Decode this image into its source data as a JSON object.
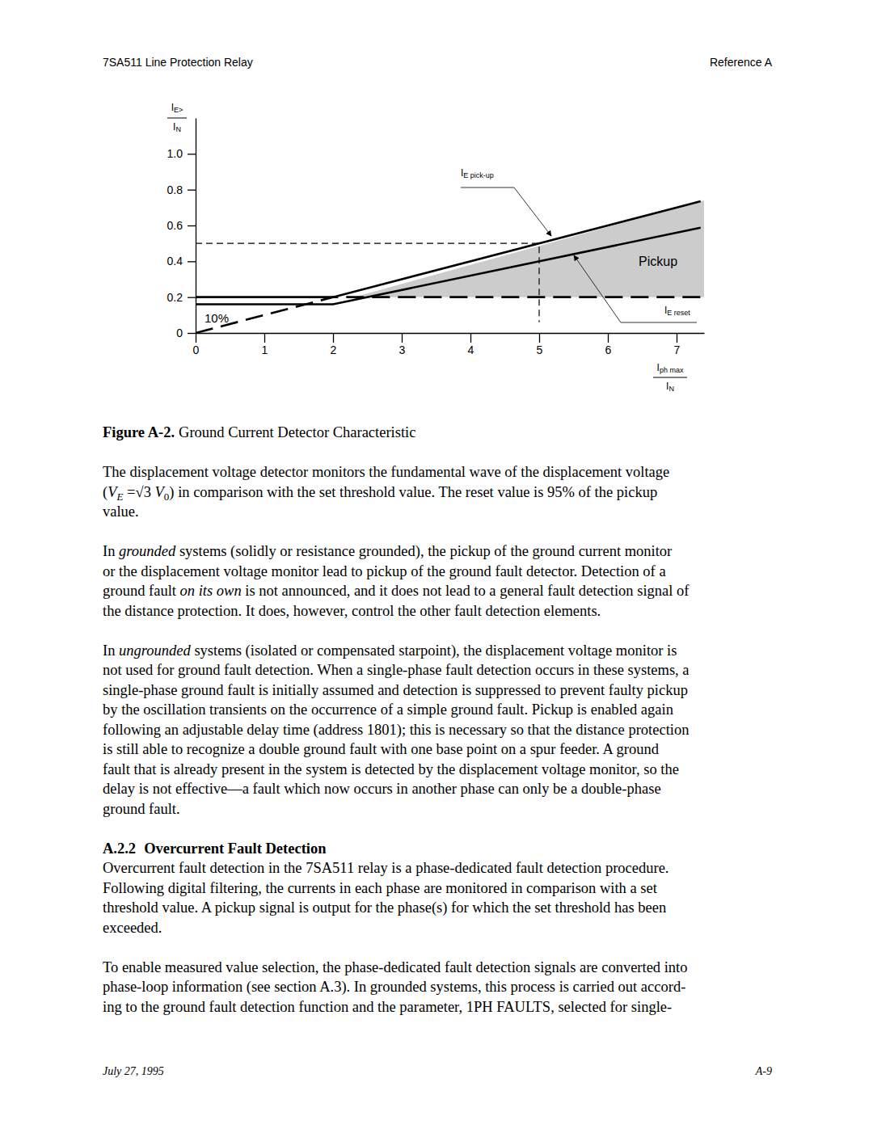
{
  "header": {
    "left": "7SA511 Line Protection Relay",
    "right": "Reference A"
  },
  "chart_data": {
    "type": "line",
    "xlim": [
      0,
      7.4
    ],
    "ylim": [
      0,
      1.2
    ],
    "xticks": [
      0,
      1,
      2,
      3,
      4,
      5,
      6,
      7
    ],
    "yticks": [
      0,
      0.2,
      0.4,
      0.6,
      0.8,
      {
        "value": 1,
        "label": "1.0"
      }
    ],
    "ylabel": {
      "numerator": [
        {
          "text": "I"
        },
        {
          "text": "E>",
          "style": "sub"
        }
      ],
      "denominator": [
        {
          "text": "I"
        },
        {
          "text": "N",
          "style": "sub"
        }
      ]
    },
    "xlabel": {
      "numerator": [
        {
          "text": "I"
        },
        {
          "text": "ph max",
          "style": "sub"
        }
      ],
      "denominator": [
        {
          "text": "I"
        },
        {
          "text": "N",
          "style": "sub"
        }
      ]
    },
    "series": [
      {
        "type": "line",
        "color": "#000000",
        "line_style": "solid",
        "x": [
          0,
          2,
          7.35
        ],
        "values": [
          0.2,
          0.2,
          0.735
        ]
      },
      {
        "type": "line",
        "color": "#000000",
        "line_style": "solid",
        "x": [
          0,
          2,
          7.35
        ],
        "values": [
          0.16,
          0.16,
          0.588
        ]
      },
      {
        "type": "line",
        "color": "#000000",
        "line_style": "dashed",
        "x": [
          0,
          2,
          7.4
        ],
        "values": [
          0,
          0.2,
          0.2
        ]
      },
      {
        "type": "line",
        "color": "#000000",
        "line_style": "dotted",
        "x": [
          0,
          5,
          5
        ],
        "values": [
          0.5,
          0.5,
          0.06
        ]
      },
      {
        "type": "area",
        "color": "#cccccc",
        "x": [
          2.3,
          7.4
        ],
        "values": [
          0.2,
          0.74
        ],
        "lower": [
          0.2,
          0.2
        ]
      }
    ],
    "annotations": [
      [
        {
          "text": "I"
        },
        {
          "text": "E pick-up",
          "style": "sub"
        }
      ],
      [
        {
          "text": "I"
        },
        {
          "text": "E reset",
          "style": "sub"
        }
      ],
      [
        {
          "text": "Pickup"
        }
      ],
      [
        {
          "text": "10%"
        }
      ]
    ]
  },
  "caption": {
    "label": "Figure A-2.",
    "text": "Ground Current Detector Characteristic"
  },
  "body": [
    {
      "type": "paragraph",
      "lines": [
        [
          {
            "text": "The displacement voltage detector monitors the fundamental wave of the displacement voltage"
          }
        ],
        [
          {
            "text": "("
          },
          {
            "text": "V",
            "style": "italic"
          },
          {
            "text": "E",
            "style": "italic-sub"
          },
          {
            "text": " =√3 "
          },
          {
            "text": "V",
            "style": "italic"
          },
          {
            "text": "0",
            "style": "sub"
          },
          {
            "text": ") in comparison with the set threshold value. The reset value is 95% of the pickup"
          }
        ],
        [
          {
            "text": "value."
          }
        ]
      ]
    },
    {
      "type": "paragraph",
      "lines": [
        [
          {
            "text": "In "
          },
          {
            "text": "grounded",
            "style": "italic"
          },
          {
            "text": " systems (solidly or resistance grounded), the pickup of the ground current monitor"
          }
        ],
        [
          {
            "text": "or the displacement voltage monitor lead to pickup of the ground fault detector. Detection of a"
          }
        ],
        [
          {
            "text": "ground fault "
          },
          {
            "text": "on its own",
            "style": "italic"
          },
          {
            "text": " is not announced, and it does not lead to a general fault detection signal of"
          }
        ],
        [
          {
            "text": "the distance protection. It does, however, control the other fault detection elements."
          }
        ]
      ]
    },
    {
      "type": "paragraph",
      "lines": [
        [
          {
            "text": "In "
          },
          {
            "text": "ungrounded",
            "style": "italic"
          },
          {
            "text": " systems (isolated or compensated starpoint), the displacement voltage monitor is"
          }
        ],
        [
          {
            "text": "not used for ground fault detection. When a single-phase fault detection occurs in these systems, a"
          }
        ],
        [
          {
            "text": "single-phase ground fault is initially assumed and detection is suppressed to prevent faulty pickup"
          }
        ],
        [
          {
            "text": "by the oscillation transients on the occurrence of a simple ground fault. Pickup is enabled again"
          }
        ],
        [
          {
            "text": "following an adjustable delay time (address 1801); this is necessary so that the distance protection"
          }
        ],
        [
          {
            "text": "is still able to recognize a double ground fault with one base point on a spur feeder. A ground"
          }
        ],
        [
          {
            "text": "fault that is already present in the system is detected by the displacement voltage monitor, so the"
          }
        ],
        [
          {
            "text": "delay is not effective—a fault which now occurs in another phase can only be a double-phase"
          }
        ],
        [
          {
            "text": "ground fault."
          }
        ]
      ]
    },
    {
      "type": "heading",
      "number": "A.2.2",
      "title": "Overcurrent Fault Detection"
    },
    {
      "type": "paragraph",
      "lines": [
        [
          {
            "text": "Overcurrent fault detection in the 7SA511 relay is a phase-dedicated fault detection procedure."
          }
        ],
        [
          {
            "text": "Following digital filtering, the currents in each phase are monitored in comparison with a set"
          }
        ],
        [
          {
            "text": "threshold value. A pickup signal is output for the phase(s) for which the set threshold has been"
          }
        ],
        [
          {
            "text": "exceeded."
          }
        ]
      ]
    },
    {
      "type": "paragraph",
      "lines": [
        [
          {
            "text": "To enable measured value selection, the phase-dedicated fault detection signals are converted into"
          }
        ],
        [
          {
            "text": "phase-loop information (see section A.3). In grounded systems, this process is carried out accord-"
          }
        ],
        [
          {
            "text": "ing to the ground fault detection function and the parameter, 1PH FAULTS, selected for single-"
          }
        ]
      ]
    }
  ],
  "footer": {
    "left": "July 27, 1995",
    "right": "A-9"
  }
}
